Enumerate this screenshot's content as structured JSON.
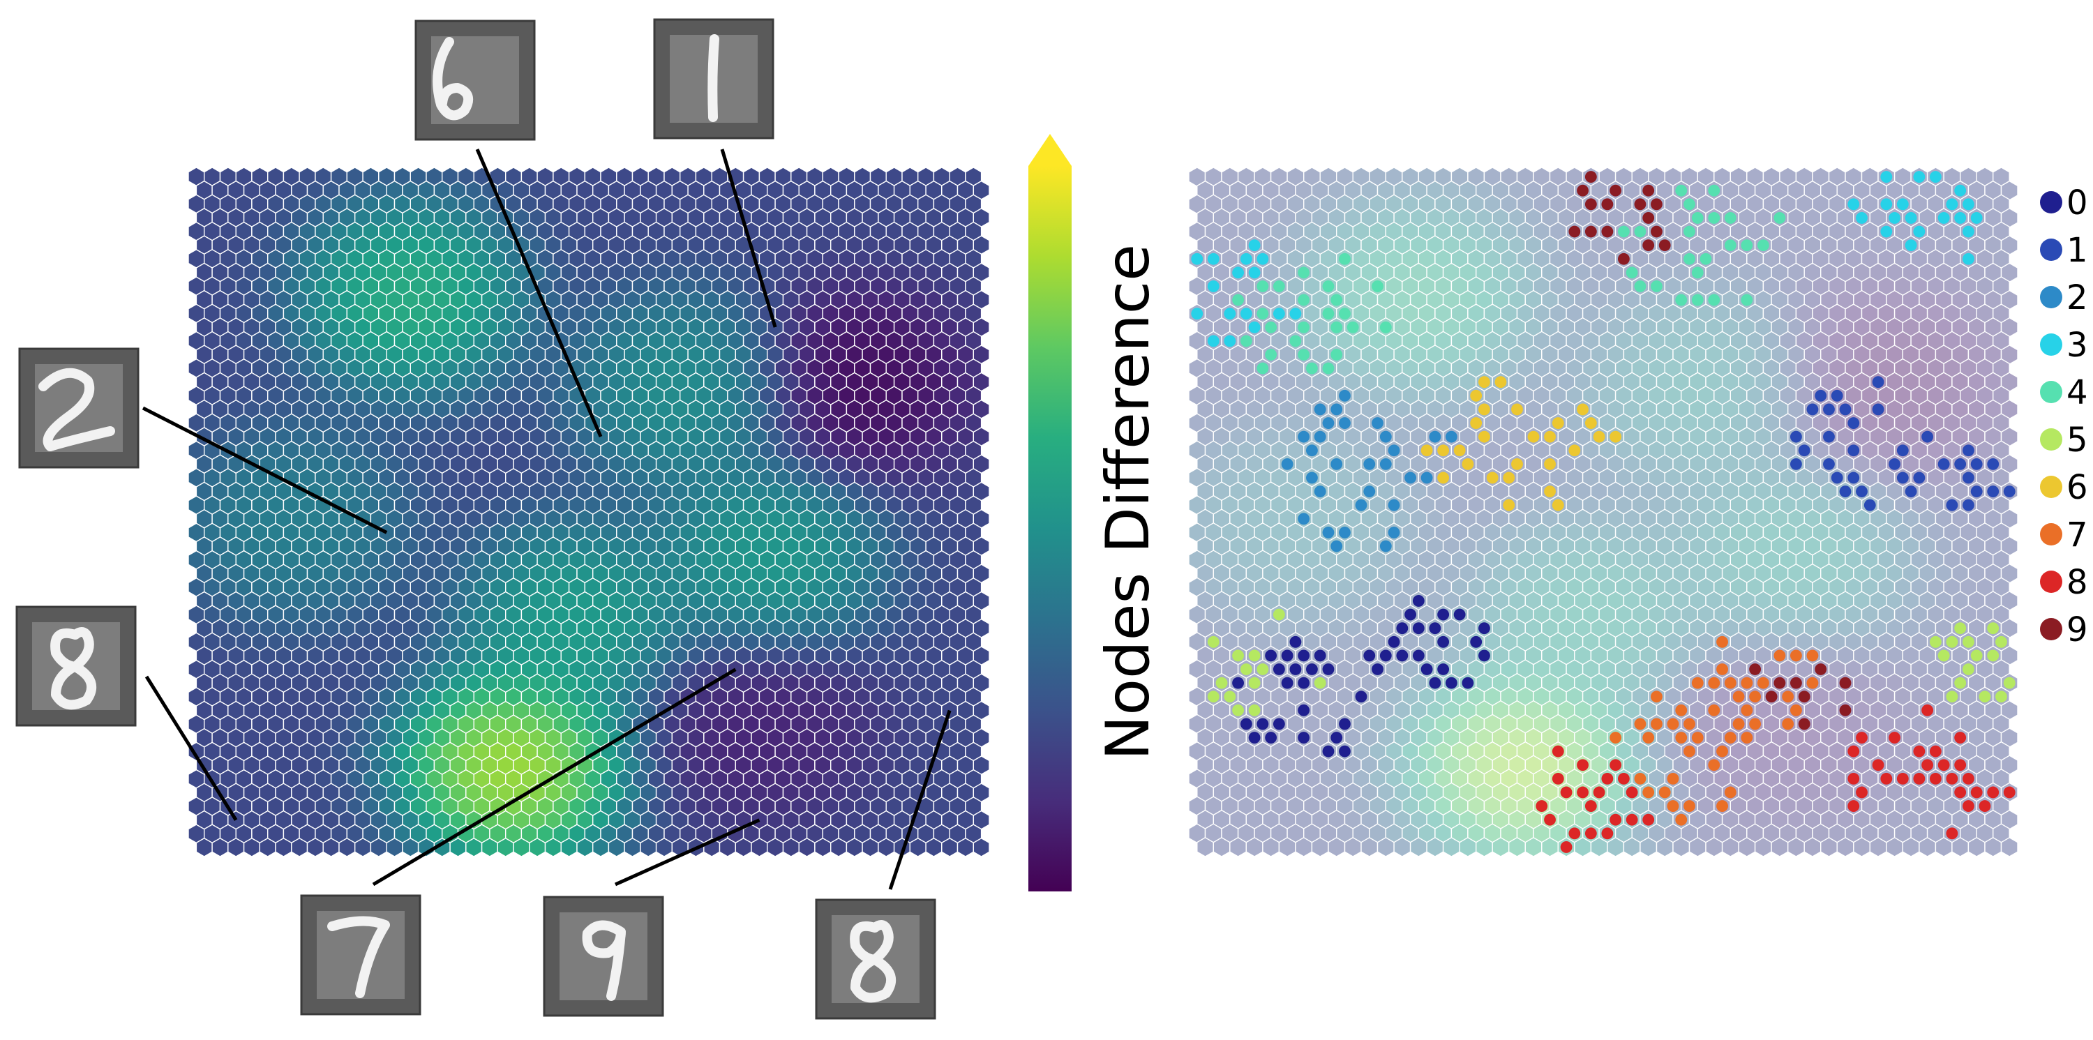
{
  "chart_data": [
    {
      "type": "heatmap",
      "subtype": "hexagonal-som-u-matrix",
      "grid": {
        "columns": 50,
        "rows": 50
      },
      "colormap": "viridis",
      "colorbar": {
        "label": "Nodes Difference",
        "extend": "max"
      },
      "value_range": [
        0,
        1
      ],
      "regions": [
        {
          "name": "high-peak",
          "center": [
            0.4,
            0.88
          ],
          "level": 1.0
        },
        {
          "name": "upper-left-blob",
          "center": [
            0.27,
            0.18
          ],
          "level": 0.7
        },
        {
          "name": "center-ridge",
          "center": [
            0.48,
            0.66
          ],
          "level": 0.62
        },
        {
          "name": "middle-right-ridge",
          "center": [
            0.73,
            0.57
          ],
          "level": 0.6
        },
        {
          "name": "upper-center-ridge",
          "center": [
            0.62,
            0.32
          ],
          "level": 0.55
        },
        {
          "name": "left-band",
          "center": [
            0.12,
            0.52
          ],
          "level": 0.48
        },
        {
          "name": "low-upper-right",
          "center": [
            0.85,
            0.31
          ],
          "level": 0.0
        },
        {
          "name": "low-bottom-right",
          "center": [
            0.72,
            0.82
          ],
          "level": 0.08
        }
      ],
      "annotated_samples": [
        {
          "digit": "6",
          "node": [
            0.5,
            0.38
          ]
        },
        {
          "digit": "1",
          "node": [
            0.74,
            0.23
          ]
        },
        {
          "digit": "2",
          "node": [
            0.24,
            0.53
          ]
        },
        {
          "digit": "8",
          "node": [
            0.04,
            0.96
          ]
        },
        {
          "digit": "7",
          "node": [
            0.7,
            0.74
          ]
        },
        {
          "digit": "9",
          "node": [
            0.71,
            0.96
          ]
        },
        {
          "digit": "8",
          "node": [
            0.96,
            0.79
          ]
        }
      ]
    },
    {
      "type": "scatter",
      "subtype": "hexagonal-som-class-hits",
      "grid": {
        "columns": 50,
        "rows": 50
      },
      "background": "u-matrix (faded)",
      "legend": {
        "position": "right",
        "entries": [
          {
            "label": "0",
            "color": "#1f1f8f"
          },
          {
            "label": "1",
            "color": "#2a4ab5"
          },
          {
            "label": "2",
            "color": "#2d8ac8"
          },
          {
            "label": "3",
            "color": "#27d2e8"
          },
          {
            "label": "4",
            "color": "#56e0b0"
          },
          {
            "label": "5",
            "color": "#b5e861"
          },
          {
            "label": "6",
            "color": "#ecc730"
          },
          {
            "label": "7",
            "color": "#ea6f27"
          },
          {
            "label": "8",
            "color": "#dc2626"
          },
          {
            "label": "9",
            "color": "#8b1c23"
          }
        ]
      },
      "class_clusters": [
        {
          "class": "0",
          "center": [
            0.14,
            0.78
          ],
          "spread": 0.1
        },
        {
          "class": "0",
          "center": [
            0.3,
            0.7
          ],
          "spread": 0.07
        },
        {
          "class": "1",
          "center": [
            0.82,
            0.4
          ],
          "spread": 0.09
        },
        {
          "class": "1",
          "center": [
            0.96,
            0.45
          ],
          "spread": 0.05
        },
        {
          "class": "2",
          "center": [
            0.2,
            0.44
          ],
          "spread": 0.11
        },
        {
          "class": "3",
          "center": [
            0.05,
            0.18
          ],
          "spread": 0.08
        },
        {
          "class": "3",
          "center": [
            0.88,
            0.06
          ],
          "spread": 0.09
        },
        {
          "class": "4",
          "center": [
            0.14,
            0.2
          ],
          "spread": 0.1
        },
        {
          "class": "4",
          "center": [
            0.62,
            0.12
          ],
          "spread": 0.1
        },
        {
          "class": "5",
          "center": [
            0.08,
            0.73
          ],
          "spread": 0.08
        },
        {
          "class": "5",
          "center": [
            0.96,
            0.73
          ],
          "spread": 0.06
        },
        {
          "class": "6",
          "center": [
            0.4,
            0.4
          ],
          "spread": 0.11
        },
        {
          "class": "7",
          "center": [
            0.6,
            0.87
          ],
          "spread": 0.1
        },
        {
          "class": "7",
          "center": [
            0.69,
            0.76
          ],
          "spread": 0.08
        },
        {
          "class": "8",
          "center": [
            0.9,
            0.9
          ],
          "spread": 0.1
        },
        {
          "class": "8",
          "center": [
            0.48,
            0.92
          ],
          "spread": 0.08
        },
        {
          "class": "9",
          "center": [
            0.52,
            0.06
          ],
          "spread": 0.07
        },
        {
          "class": "9",
          "center": [
            0.74,
            0.76
          ],
          "spread": 0.06
        }
      ]
    }
  ],
  "thumbnails": [
    {
      "digit": "6"
    },
    {
      "digit": "1"
    },
    {
      "digit": "2"
    },
    {
      "digit": "8"
    },
    {
      "digit": "7"
    },
    {
      "digit": "9"
    },
    {
      "digit": "8"
    }
  ]
}
